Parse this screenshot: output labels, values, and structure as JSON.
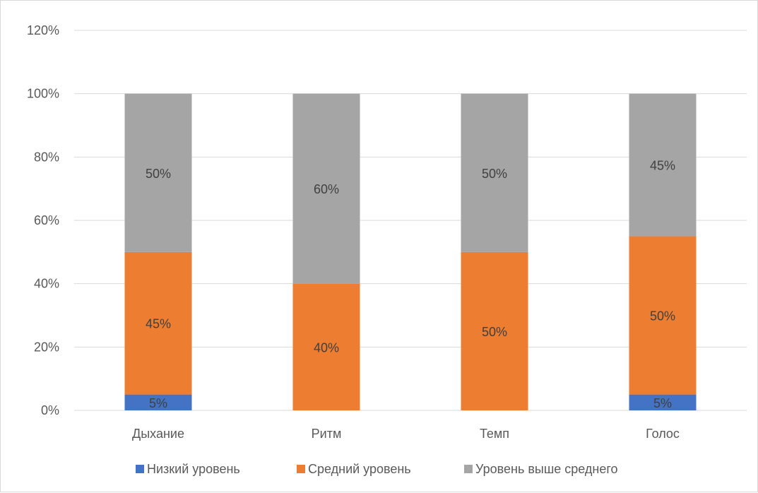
{
  "chart_data": {
    "type": "bar",
    "stacked": true,
    "categories": [
      "Дыхание",
      "Ритм",
      "Темп",
      "Голос"
    ],
    "series": [
      {
        "name": "Низкий уровень",
        "color": "#4472c4",
        "values": [
          5,
          0,
          0,
          5
        ],
        "labels": [
          "5%",
          "",
          "",
          "5%"
        ]
      },
      {
        "name": "Средний уровень",
        "color": "#ed7d31",
        "values": [
          45,
          40,
          50,
          50
        ],
        "labels": [
          "45%",
          "40%",
          "50%",
          "50%"
        ]
      },
      {
        "name": "Уровень выше среднего",
        "color": "#a5a5a5",
        "values": [
          50,
          60,
          50,
          45
        ],
        "labels": [
          "50%",
          "60%",
          "50%",
          "45%"
        ]
      }
    ],
    "ylim": [
      0,
      120
    ],
    "yticks": [
      0,
      20,
      40,
      60,
      80,
      100,
      120
    ],
    "ytick_labels": [
      "0%",
      "20%",
      "40%",
      "60%",
      "80%",
      "100%",
      "120%"
    ],
    "grid": true,
    "legend_position": "bottom"
  }
}
